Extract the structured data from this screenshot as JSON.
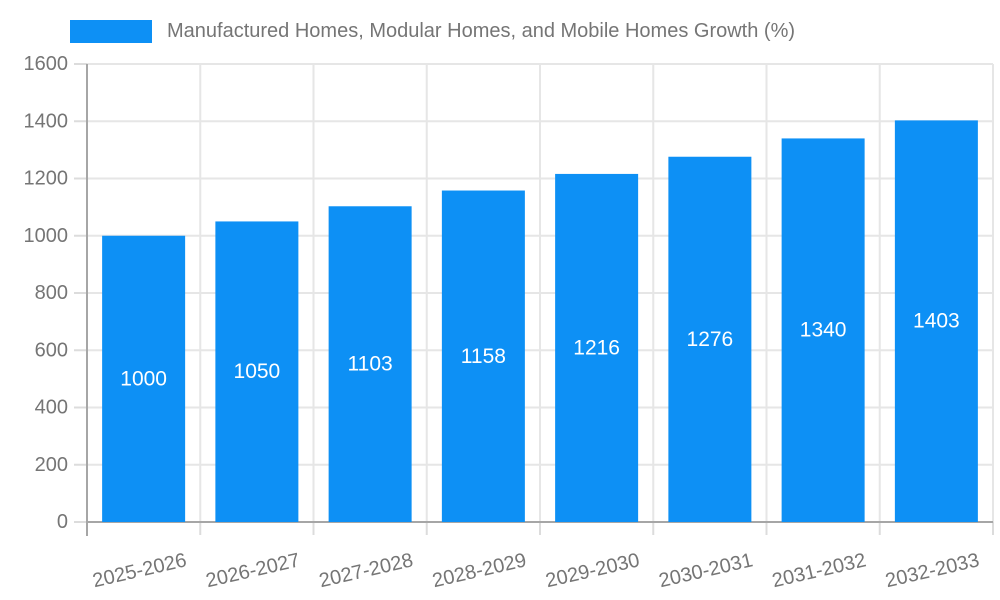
{
  "chart_data": {
    "type": "bar",
    "title": "Manufactured Homes, Modular Homes, and Mobile Homes Growth (%)",
    "categories": [
      "2025-2026",
      "2026-2027",
      "2027-2028",
      "2028-2029",
      "2029-2030",
      "2030-2031",
      "2031-2032",
      "2032-2033"
    ],
    "values": [
      1000,
      1050,
      1103,
      1158,
      1216,
      1276,
      1340,
      1403
    ],
    "bar_labels": [
      "1000",
      "1050",
      "1103",
      "1158",
      "1216",
      "1276",
      "1340",
      "1403"
    ],
    "xlabel": "",
    "ylabel": "",
    "ylim": [
      0,
      1600
    ],
    "yticks": [
      0,
      200,
      400,
      600,
      800,
      1000,
      1200,
      1400,
      1600
    ],
    "grid": true,
    "legend_position": "top-left",
    "colors": {
      "bar": "#0d90f5",
      "bar_label": "#ffffff",
      "grid": "#e6e6e6",
      "tick": "#dcdcdc",
      "axis": "#a6a6a6",
      "text": "#757575",
      "background": "#ffffff"
    }
  }
}
